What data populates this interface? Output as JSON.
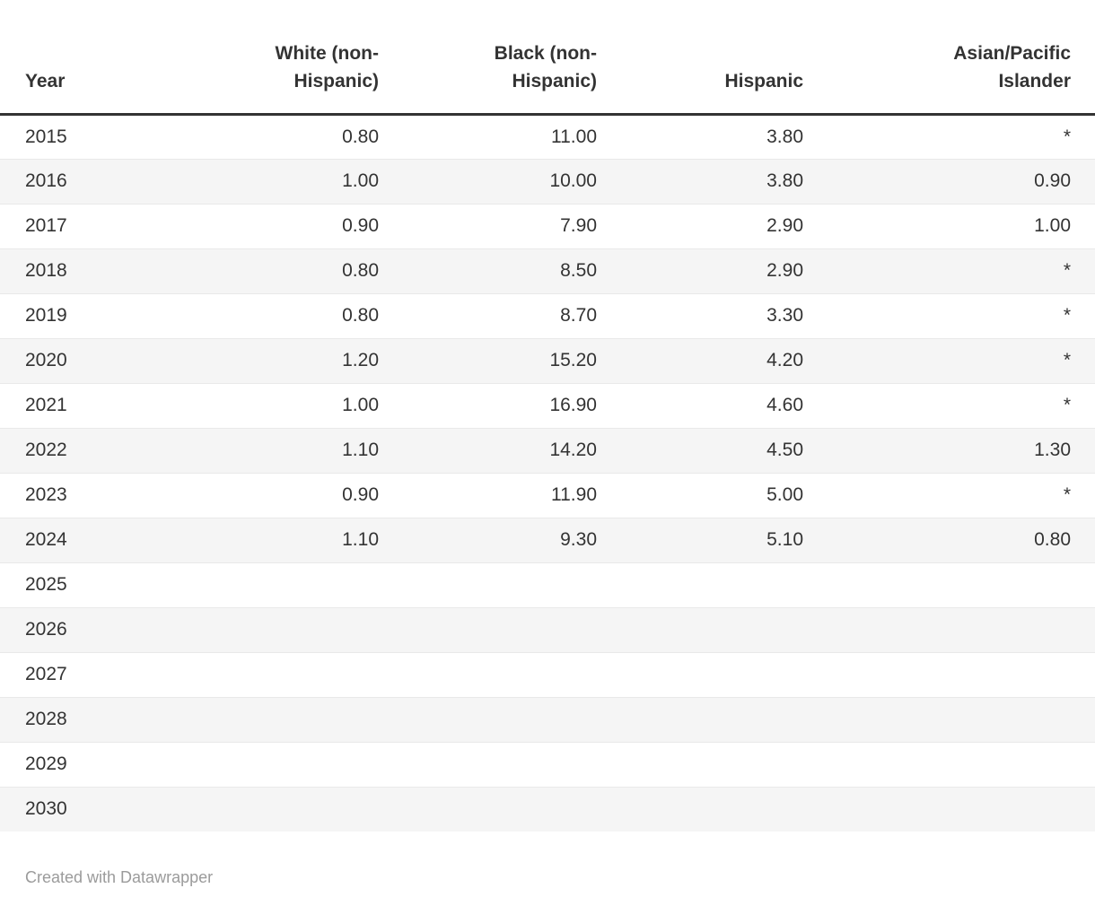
{
  "chart_data": {
    "type": "table",
    "columns": [
      {
        "key": "year",
        "label": "Year",
        "lines": [
          "Year"
        ],
        "align": "left"
      },
      {
        "key": "white",
        "label": "White (non-Hispanic)",
        "lines": [
          "White (non-",
          "Hispanic)"
        ],
        "align": "right"
      },
      {
        "key": "black",
        "label": "Black (non-Hispanic)",
        "lines": [
          "Black (non-",
          "Hispanic)"
        ],
        "align": "right"
      },
      {
        "key": "hispanic",
        "label": "Hispanic",
        "lines": [
          "Hispanic"
        ],
        "align": "right"
      },
      {
        "key": "asian_pacific_islander",
        "label": "Asian/Pacific Islander",
        "lines": [
          "Asian/Pacific",
          "Islander"
        ],
        "align": "right"
      }
    ],
    "rows": [
      [
        "2015",
        "0.80",
        "11.00",
        "3.80",
        "*"
      ],
      [
        "2016",
        "1.00",
        "10.00",
        "3.80",
        "0.90"
      ],
      [
        "2017",
        "0.90",
        "7.90",
        "2.90",
        "1.00"
      ],
      [
        "2018",
        "0.80",
        "8.50",
        "2.90",
        "*"
      ],
      [
        "2019",
        "0.80",
        "8.70",
        "3.30",
        "*"
      ],
      [
        "2020",
        "1.20",
        "15.20",
        "4.20",
        "*"
      ],
      [
        "2021",
        "1.00",
        "16.90",
        "4.60",
        "*"
      ],
      [
        "2022",
        "1.10",
        "14.20",
        "4.50",
        "1.30"
      ],
      [
        "2023",
        "0.90",
        "11.90",
        "5.00",
        "*"
      ],
      [
        "2024",
        "1.10",
        "9.30",
        "5.10",
        "0.80"
      ],
      [
        "2025",
        "",
        "",
        "",
        ""
      ],
      [
        "2026",
        "",
        "",
        "",
        ""
      ],
      [
        "2027",
        "",
        "",
        "",
        ""
      ],
      [
        "2028",
        "",
        "",
        "",
        ""
      ],
      [
        "2029",
        "",
        "",
        "",
        ""
      ],
      [
        "2030",
        "",
        "",
        "",
        ""
      ]
    ],
    "attribution": "Created with Datawrapper",
    "layout_hints": {
      "striped_rows": true,
      "stripe_on": "even",
      "header_rule": "thick-bottom",
      "numeric_alignment": "right"
    }
  },
  "colors": {
    "text": "#333333",
    "header-border": "#333333",
    "stripe": "#f5f5f5",
    "row-border": "#e9e9e9",
    "attribution": "#9b9b9b",
    "background": "#ffffff"
  }
}
